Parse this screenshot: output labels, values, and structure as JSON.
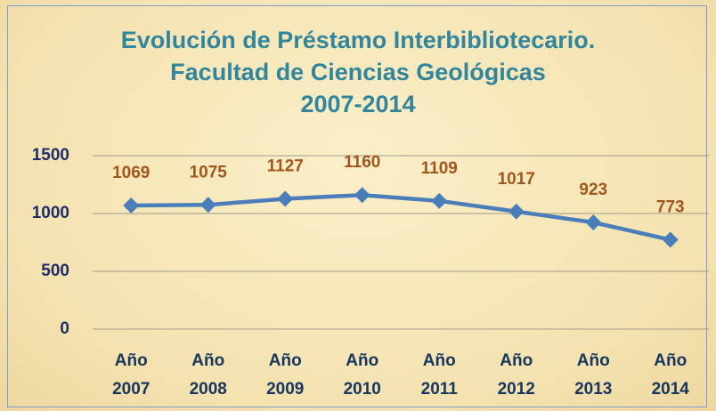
{
  "chart_data": {
    "type": "line",
    "title": [
      "Evolución de Préstamo Interbibliotecario.",
      "Facultad de Ciencias Geológicas",
      "2007-2014"
    ],
    "categories": [
      "Año 2007",
      "Año 2008",
      "Año 2009",
      "Año 2010",
      "Año 2011",
      "Año 2012",
      "Año 2013",
      "Año 2014"
    ],
    "values": [
      1069,
      1075,
      1127,
      1160,
      1109,
      1017,
      923,
      773
    ],
    "color": "#4a7ebb",
    "label_color": "#a0561c",
    "ylim": [
      0,
      1500
    ],
    "yticks": [
      0,
      500,
      1000,
      1500
    ],
    "grid": true
  }
}
